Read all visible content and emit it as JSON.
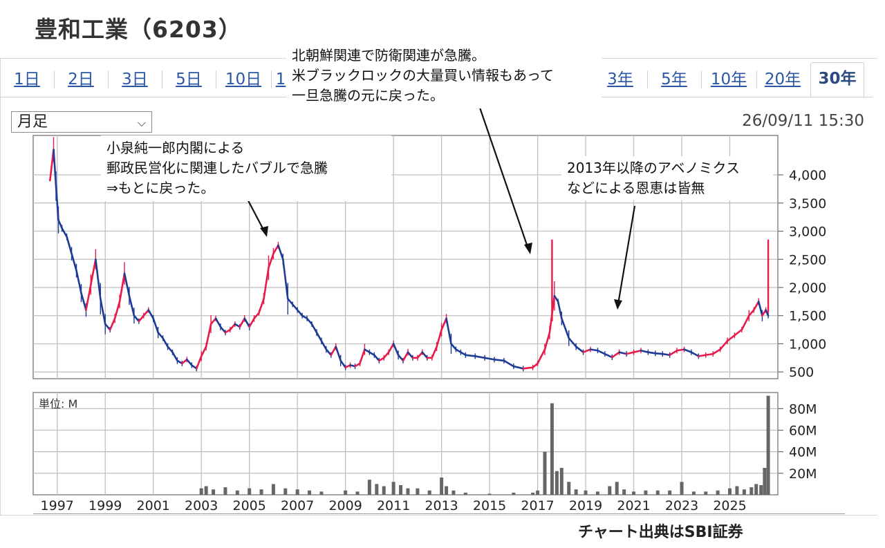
{
  "page_title": "豊和工業（6203）",
  "tabs": [
    {
      "label": "1日",
      "active": false
    },
    {
      "label": "2日",
      "active": false
    },
    {
      "label": "3日",
      "active": false
    },
    {
      "label": "5日",
      "active": false
    },
    {
      "label": "10日",
      "active": false
    },
    {
      "label": "1",
      "active": false
    },
    {
      "label": "3年",
      "active": false
    },
    {
      "label": "5年",
      "active": false
    },
    {
      "label": "10年",
      "active": false
    },
    {
      "label": "20年",
      "active": false
    },
    {
      "label": "30年",
      "active": true
    }
  ],
  "period_select": {
    "value": "月足"
  },
  "timestamp": "26/09/11 15:30",
  "annotations": {
    "koizumi": [
      "小泉純一郎内閣による",
      "郵政民営化に関連したバブルで急騰",
      "⇒もとに戻った。"
    ],
    "north_korea": [
      "北朝鮮関連で防衛関連が急騰。",
      "米ブラックロックの大量買い情報もあって",
      "一旦急騰の元に戻った。"
    ],
    "abenomics": [
      "2013年以降のアベノミクス",
      "などによる恩恵は皆無"
    ]
  },
  "source_note": "チャート出典はSBI証券",
  "colors": {
    "up": "#e8194b",
    "down": "#1c3a96",
    "volume": "#666666",
    "grid": "#bfbfbf",
    "annotation_arrow": "#111111"
  },
  "chart_data": [
    {
      "type": "line",
      "series": [
        {
          "values": [
            [
              1996.7,
              3900
            ],
            [
              1996.85,
              4450
            ],
            [
              1996.95,
              3800
            ],
            [
              1997.05,
              3200
            ],
            [
              1997.2,
              3050
            ],
            [
              1997.4,
              2900
            ],
            [
              1997.6,
              2600
            ],
            [
              1997.8,
              2300
            ],
            [
              1998.0,
              1900
            ],
            [
              1998.2,
              1600
            ],
            [
              1998.4,
              2050
            ],
            [
              1998.6,
              2500
            ],
            [
              1998.8,
              1800
            ],
            [
              1999.0,
              1350
            ],
            [
              1999.2,
              1250
            ],
            [
              1999.4,
              1450
            ],
            [
              1999.6,
              1750
            ],
            [
              1999.8,
              2250
            ],
            [
              2000.0,
              1850
            ],
            [
              2000.2,
              1500
            ],
            [
              2000.4,
              1400
            ],
            [
              2000.6,
              1500
            ],
            [
              2000.8,
              1600
            ],
            [
              2001.0,
              1450
            ],
            [
              2001.2,
              1200
            ],
            [
              2001.4,
              1100
            ],
            [
              2001.6,
              950
            ],
            [
              2001.8,
              850
            ],
            [
              2002.0,
              700
            ],
            [
              2002.2,
              650
            ],
            [
              2002.4,
              720
            ],
            [
              2002.6,
              620
            ],
            [
              2002.8,
              560
            ],
            [
              2003.0,
              780
            ],
            [
              2003.2,
              950
            ],
            [
              2003.4,
              1350
            ],
            [
              2003.6,
              1450
            ],
            [
              2003.8,
              1300
            ],
            [
              2004.0,
              1200
            ],
            [
              2004.2,
              1250
            ],
            [
              2004.4,
              1350
            ],
            [
              2004.6,
              1300
            ],
            [
              2004.8,
              1450
            ],
            [
              2005.0,
              1300
            ],
            [
              2005.2,
              1450
            ],
            [
              2005.4,
              1550
            ],
            [
              2005.6,
              1800
            ],
            [
              2005.8,
              2350
            ],
            [
              2006.0,
              2600
            ],
            [
              2006.2,
              2750
            ],
            [
              2006.4,
              2500
            ],
            [
              2006.6,
              1800
            ],
            [
              2006.8,
              1700
            ],
            [
              2007.0,
              1600
            ],
            [
              2007.2,
              1500
            ],
            [
              2007.4,
              1450
            ],
            [
              2007.6,
              1350
            ],
            [
              2007.8,
              1200
            ],
            [
              2008.0,
              1050
            ],
            [
              2008.2,
              900
            ],
            [
              2008.4,
              800
            ],
            [
              2008.6,
              950
            ],
            [
              2008.8,
              700
            ],
            [
              2009.0,
              580
            ],
            [
              2009.2,
              620
            ],
            [
              2009.4,
              600
            ],
            [
              2009.6,
              650
            ],
            [
              2009.8,
              900
            ],
            [
              2010.0,
              850
            ],
            [
              2010.2,
              800
            ],
            [
              2010.4,
              700
            ],
            [
              2010.6,
              750
            ],
            [
              2010.8,
              850
            ],
            [
              2011.0,
              1000
            ],
            [
              2011.2,
              800
            ],
            [
              2011.4,
              700
            ],
            [
              2011.6,
              850
            ],
            [
              2011.8,
              750
            ],
            [
              2012.0,
              750
            ],
            [
              2012.2,
              850
            ],
            [
              2012.4,
              750
            ],
            [
              2012.6,
              750
            ],
            [
              2012.8,
              950
            ],
            [
              2013.0,
              1250
            ],
            [
              2013.2,
              1450
            ],
            [
              2013.4,
              1000
            ],
            [
              2013.6,
              900
            ],
            [
              2013.8,
              850
            ],
            [
              2014.0,
              800
            ],
            [
              2014.4,
              780
            ],
            [
              2014.8,
              750
            ],
            [
              2015.2,
              720
            ],
            [
              2015.6,
              700
            ],
            [
              2016.0,
              600
            ],
            [
              2016.4,
              560
            ],
            [
              2016.8,
              580
            ],
            [
              2017.0,
              650
            ],
            [
              2017.3,
              900
            ],
            [
              2017.5,
              1200
            ],
            [
              2017.7,
              1850
            ],
            [
              2017.85,
              1750
            ],
            [
              2018.0,
              1450
            ],
            [
              2018.3,
              1100
            ],
            [
              2018.6,
              950
            ],
            [
              2018.9,
              850
            ],
            [
              2019.2,
              900
            ],
            [
              2019.5,
              880
            ],
            [
              2019.8,
              820
            ],
            [
              2020.1,
              760
            ],
            [
              2020.4,
              850
            ],
            [
              2020.7,
              820
            ],
            [
              2021.0,
              850
            ],
            [
              2021.3,
              880
            ],
            [
              2021.6,
              850
            ],
            [
              2021.9,
              830
            ],
            [
              2022.2,
              820
            ],
            [
              2022.5,
              800
            ],
            [
              2022.8,
              880
            ],
            [
              2023.1,
              900
            ],
            [
              2023.4,
              850
            ],
            [
              2023.7,
              780
            ],
            [
              2024.0,
              800
            ],
            [
              2024.3,
              820
            ],
            [
              2024.6,
              900
            ],
            [
              2024.9,
              1050
            ],
            [
              2025.2,
              1150
            ],
            [
              2025.5,
              1250
            ],
            [
              2025.8,
              1500
            ],
            [
              2026.0,
              1600
            ],
            [
              2026.2,
              1750
            ],
            [
              2026.35,
              1500
            ],
            [
              2026.5,
              1600
            ],
            [
              2026.6,
              1500
            ]
          ]
        }
      ],
      "xlim": [
        1996.0,
        2027.0
      ],
      "ylim": [
        380,
        4700
      ],
      "xticks": [
        "1997",
        "1999",
        "2001",
        "2003",
        "2005",
        "2007",
        "2009",
        "2011",
        "2013",
        "2015",
        "2017",
        "2019",
        "2021",
        "2023",
        "2025"
      ],
      "yticks": [
        {
          "value": 500,
          "label": "500"
        },
        {
          "value": 1000,
          "label": "1,000"
        },
        {
          "value": 1500,
          "label": "1,500"
        },
        {
          "value": 2000,
          "label": "2,000"
        },
        {
          "value": 2500,
          "label": "2,500"
        },
        {
          "value": 3000,
          "label": "3,000"
        },
        {
          "value": 3500,
          "label": "3,500"
        },
        {
          "value": 4000,
          "label": "4,000"
        }
      ],
      "spikes": [
        {
          "x": 2017.6,
          "high": 2850,
          "low": 1400
        },
        {
          "x": 2026.6,
          "high": 2850,
          "low": 1550
        }
      ],
      "grid": true
    },
    {
      "type": "bar",
      "unit_label": "単位: M",
      "x": [
        2003.0,
        2003.2,
        2003.5,
        2004.0,
        2004.5,
        2005.0,
        2005.5,
        2006.0,
        2006.5,
        2007.0,
        2007.5,
        2008.0,
        2009.0,
        2009.5,
        2010.0,
        2010.3,
        2010.6,
        2011.0,
        2011.3,
        2011.6,
        2012.0,
        2012.5,
        2013.0,
        2013.2,
        2013.5,
        2014.0,
        2015.0,
        2016.0,
        2016.8,
        2017.0,
        2017.3,
        2017.6,
        2017.8,
        2018.0,
        2018.3,
        2018.6,
        2019.0,
        2019.5,
        2020.0,
        2020.3,
        2020.6,
        2021.0,
        2021.5,
        2022.0,
        2022.5,
        2023.0,
        2023.5,
        2024.0,
        2024.5,
        2025.0,
        2025.3,
        2025.6,
        2025.9,
        2026.1,
        2026.3,
        2026.45,
        2026.6
      ],
      "values": [
        6,
        8,
        5,
        7,
        4,
        6,
        5,
        10,
        6,
        5,
        4,
        3,
        4,
        3,
        14,
        10,
        8,
        12,
        9,
        6,
        6,
        4,
        16,
        8,
        4,
        2,
        1,
        2,
        2,
        4,
        40,
        85,
        22,
        25,
        12,
        5,
        4,
        3,
        8,
        12,
        5,
        3,
        4,
        4,
        4,
        12,
        3,
        3,
        4,
        6,
        8,
        5,
        7,
        10,
        9,
        25,
        92
      ],
      "xlim": [
        1996.0,
        2027.0
      ],
      "ylim": [
        0,
        95
      ],
      "yticks": [
        {
          "value": 20,
          "label": "20M"
        },
        {
          "value": 40,
          "label": "40M"
        },
        {
          "value": 60,
          "label": "60M"
        },
        {
          "value": 80,
          "label": "80M"
        }
      ],
      "grid": true
    }
  ]
}
